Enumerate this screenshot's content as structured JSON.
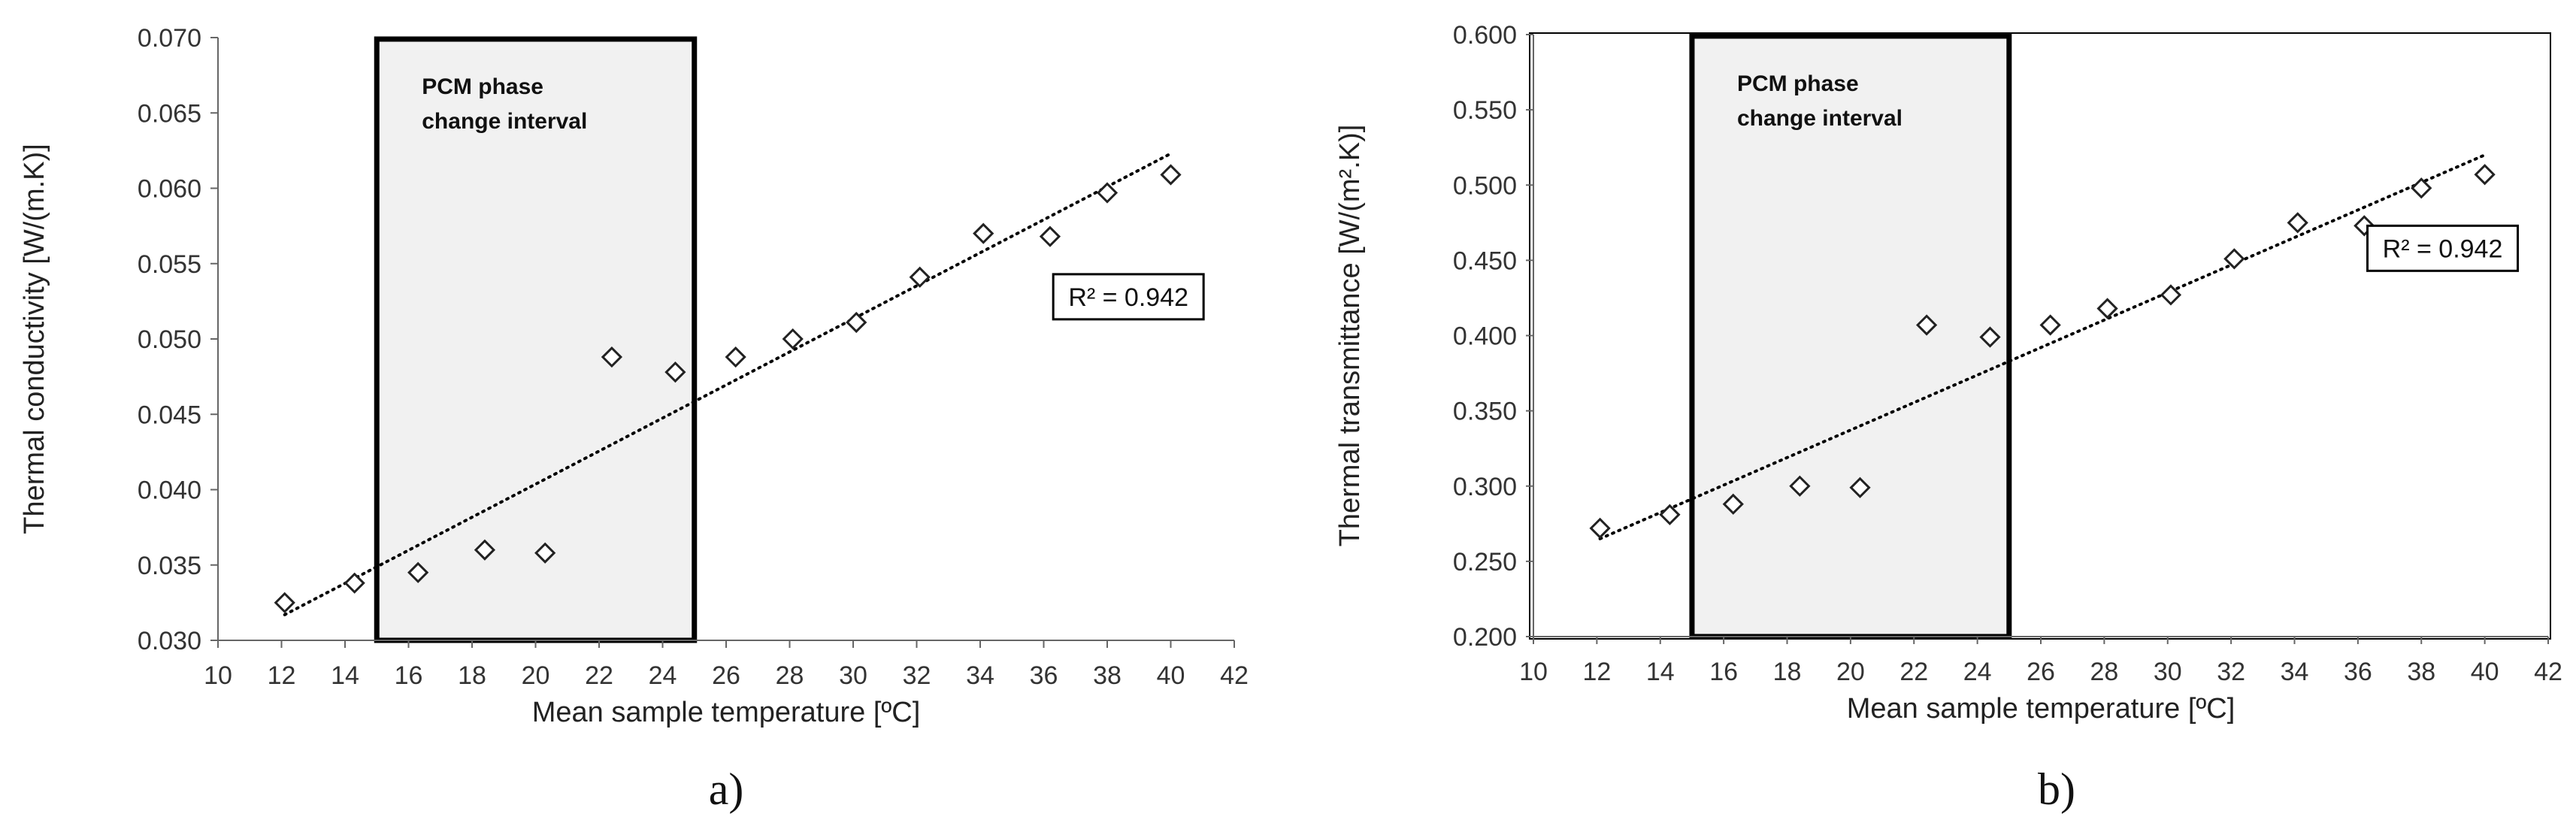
{
  "chart_data": [
    {
      "type": "scatter",
      "panel_label": "a)",
      "xlabel": "Mean sample temperature [ºC]",
      "ylabel": "Thermal conductivity [W/(m.K)]",
      "xlim": [
        10,
        42
      ],
      "ylim": [
        0.03,
        0.07
      ],
      "x_ticks": [
        "10",
        "12",
        "14",
        "16",
        "18",
        "20",
        "22",
        "24",
        "26",
        "28",
        "30",
        "32",
        "34",
        "36",
        "38",
        "40",
        "42"
      ],
      "y_ticks": [
        "0.030",
        "0.035",
        "0.040",
        "0.045",
        "0.050",
        "0.055",
        "0.060",
        "0.065",
        "0.070"
      ],
      "grid": false,
      "marker": "diamond",
      "points": [
        {
          "x": 12.1,
          "y": 0.0325
        },
        {
          "x": 14.3,
          "y": 0.0338
        },
        {
          "x": 16.3,
          "y": 0.0345
        },
        {
          "x": 18.4,
          "y": 0.036
        },
        {
          "x": 20.3,
          "y": 0.0358
        },
        {
          "x": 22.4,
          "y": 0.0488
        },
        {
          "x": 24.4,
          "y": 0.0478
        },
        {
          "x": 26.3,
          "y": 0.0488
        },
        {
          "x": 28.1,
          "y": 0.05
        },
        {
          "x": 30.1,
          "y": 0.0511
        },
        {
          "x": 32.1,
          "y": 0.0541
        },
        {
          "x": 34.1,
          "y": 0.057
        },
        {
          "x": 36.2,
          "y": 0.0568
        },
        {
          "x": 38.0,
          "y": 0.0597
        },
        {
          "x": 40.0,
          "y": 0.0609
        }
      ],
      "trendline": {
        "style": "dotted",
        "x": [
          12.1,
          40.0
        ],
        "y": [
          0.0317,
          0.0623
        ]
      },
      "annotation_box": {
        "x_range": [
          15,
          25
        ],
        "text_lines": [
          "PCM phase",
          "change interval"
        ]
      },
      "r2_label": "R² = 0.942",
      "r2_anchor": {
        "x": 36.3,
        "y": 0.0528
      }
    },
    {
      "type": "scatter",
      "panel_label": "b)",
      "xlabel": "Mean sample temperature [ºC]",
      "ylabel": "Thermal transmittance [W/(m².K)]",
      "xlim": [
        10,
        42
      ],
      "ylim": [
        0.2,
        0.6
      ],
      "x_ticks": [
        "10",
        "12",
        "14",
        "16",
        "18",
        "20",
        "22",
        "24",
        "26",
        "28",
        "30",
        "32",
        "34",
        "36",
        "38",
        "40",
        "42"
      ],
      "y_ticks": [
        "0.200",
        "0.250",
        "0.300",
        "0.350",
        "0.400",
        "0.450",
        "0.500",
        "0.550",
        "0.600"
      ],
      "grid": false,
      "marker": "diamond",
      "points": [
        {
          "x": 12.1,
          "y": 0.272
        },
        {
          "x": 14.3,
          "y": 0.281
        },
        {
          "x": 16.3,
          "y": 0.288
        },
        {
          "x": 18.4,
          "y": 0.3
        },
        {
          "x": 20.3,
          "y": 0.299
        },
        {
          "x": 22.4,
          "y": 0.407
        },
        {
          "x": 24.4,
          "y": 0.399
        },
        {
          "x": 26.3,
          "y": 0.407
        },
        {
          "x": 28.1,
          "y": 0.418
        },
        {
          "x": 30.1,
          "y": 0.427
        },
        {
          "x": 32.1,
          "y": 0.451
        },
        {
          "x": 34.1,
          "y": 0.475
        },
        {
          "x": 36.2,
          "y": 0.473
        },
        {
          "x": 38.0,
          "y": 0.498
        },
        {
          "x": 40.0,
          "y": 0.507
        }
      ],
      "trendline": {
        "style": "dotted",
        "x": [
          12.1,
          40.0
        ],
        "y": [
          0.265,
          0.52
        ]
      },
      "annotation_box": {
        "x_range": [
          15,
          25
        ],
        "text_lines": [
          "PCM phase",
          "change interval"
        ]
      },
      "r2_label": "R² = 0.942",
      "r2_anchor": {
        "x": 36.3,
        "y": 0.458
      }
    }
  ]
}
